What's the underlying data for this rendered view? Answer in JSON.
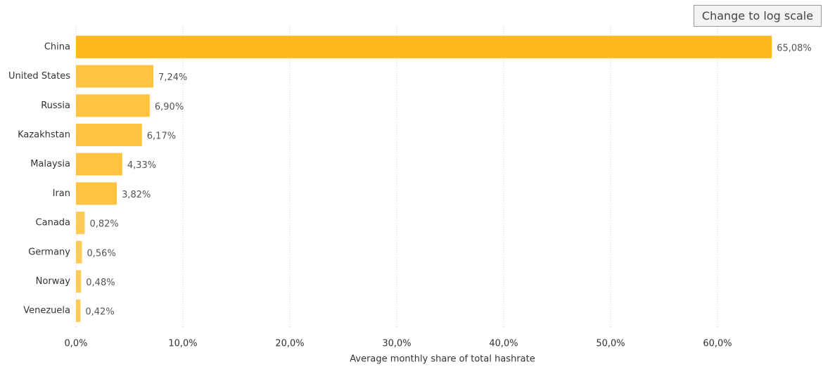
{
  "button": "Change to log scale",
  "chart_data": {
    "type": "hbar",
    "x_label": "Average monthly share of total hashrate",
    "categories": [
      "China",
      "United States",
      "Russia",
      "Kazakhstan",
      "Malaysia",
      "Iran",
      "Canada",
      "Germany",
      "Norway",
      "Venezuela"
    ],
    "values": [
      65.08,
      7.24,
      6.9,
      6.17,
      4.33,
      3.82,
      0.82,
      0.56,
      0.48,
      0.42
    ],
    "value_labels": [
      "65,08%",
      "7,24%",
      "6,90%",
      "6,17%",
      "4,33%",
      "3,82%",
      "0,82%",
      "0,56%",
      "0,48%",
      "0,42%"
    ],
    "colors": [
      "#fdb81e",
      "#fec43f",
      "#fec43f",
      "#fec43f",
      "#fec43f",
      "#fec43f",
      "#fecb55",
      "#fecb55",
      "#fecb55",
      "#fecb55"
    ],
    "xlim": [
      0,
      70
    ],
    "xticks": [
      {
        "value": 0,
        "label": "0,0%"
      },
      {
        "value": 10,
        "label": "10,0%"
      },
      {
        "value": 20,
        "label": "20,0%"
      },
      {
        "value": 30,
        "label": "30,0%"
      },
      {
        "value": 40,
        "label": "40,0%"
      },
      {
        "value": 50,
        "label": "50,0%"
      },
      {
        "value": 60,
        "label": "60,0%"
      }
    ],
    "grid": true,
    "log_scale": false
  }
}
